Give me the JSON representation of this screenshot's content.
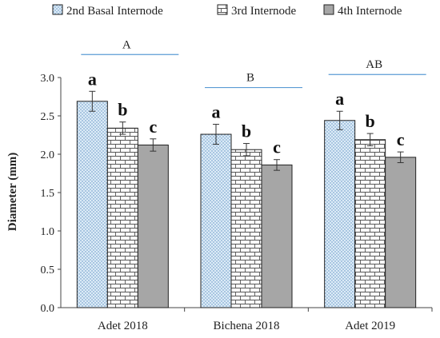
{
  "chart_data": {
    "type": "bar",
    "categories": [
      "Adet 2018",
      "Bichena 2018",
      "Adet 2019"
    ],
    "series": [
      {
        "name": "2nd Basal Internode",
        "values": [
          2.69,
          2.26,
          2.44
        ],
        "errors": [
          0.13,
          0.13,
          0.12
        ],
        "letters": [
          "a",
          "a",
          "a"
        ],
        "color": "#dcebf7",
        "pattern": "dots"
      },
      {
        "name": "3rd Internode",
        "values": [
          2.34,
          2.06,
          2.19
        ],
        "errors": [
          0.08,
          0.08,
          0.08
        ],
        "letters": [
          "b",
          "b",
          "b"
        ],
        "color": "#ffffff",
        "pattern": "brick"
      },
      {
        "name": "4th Internode",
        "values": [
          2.12,
          1.86,
          1.96
        ],
        "errors": [
          0.08,
          0.07,
          0.07
        ],
        "letters": [
          "c",
          "c",
          "c"
        ],
        "color": "#a6a6a6",
        "pattern": "solid"
      }
    ],
    "group_labels": [
      "A",
      "B",
      "AB"
    ],
    "group_line_color": "#5b9bd5",
    "xlabel": "",
    "ylabel": "Diameter (mm)",
    "ylim": [
      0,
      3.0
    ],
    "yticks": [
      "0.0",
      "0.5",
      "1.0",
      "1.5",
      "2.0",
      "2.5",
      "3.0"
    ],
    "grid": false,
    "legend_position": "top"
  }
}
